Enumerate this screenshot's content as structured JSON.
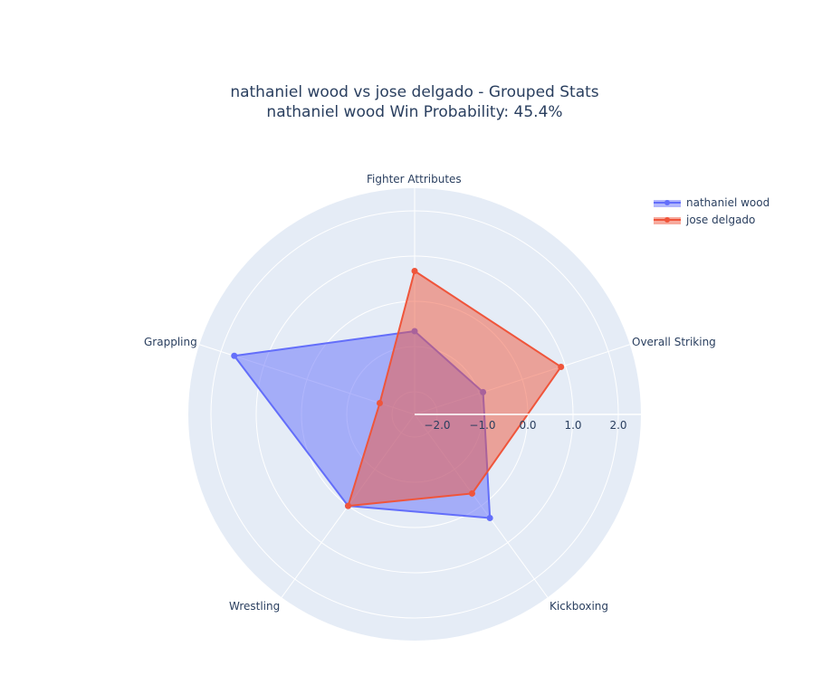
{
  "title": {
    "line1": "nathaniel wood vs jose delgado - Grouped Stats",
    "line2": "nathaniel wood Win Probability: 45.4%"
  },
  "legend": {
    "items": [
      {
        "label": "nathaniel wood",
        "color": "#636efa"
      },
      {
        "label": "jose delgado",
        "color": "#EF553B"
      }
    ]
  },
  "chart_data": {
    "type": "radar",
    "title": "nathaniel wood vs jose delgado - Grouped Stats\nnathaniel wood Win Probability: 45.4%",
    "categories": [
      "Fighter Attributes",
      "Overall Striking",
      "Kickboxing",
      "Wrestling",
      "Grappling"
    ],
    "series": [
      {
        "name": "nathaniel wood",
        "color": "#636efa",
        "values": [
          -0.66,
          -0.91,
          0.33,
          0.0,
          1.69
        ]
      },
      {
        "name": "jose delgado",
        "color": "#EF553B",
        "values": [
          0.67,
          0.9,
          -0.34,
          0.0,
          -1.69
        ]
      }
    ],
    "radial_axis": {
      "range": [
        -2.5,
        2.5
      ],
      "ticks": [
        -2.0,
        -1.0,
        0.0,
        1.0,
        2.0
      ],
      "tick_labels": [
        "−2.0",
        "−1.0",
        "0.0",
        "1.0",
        "2.0"
      ]
    },
    "angular_axis": {
      "rotation": 90,
      "direction": "clockwise"
    },
    "legend_position": "top-right",
    "grid": true,
    "fill": "toself",
    "background": "#E5ECF6"
  }
}
